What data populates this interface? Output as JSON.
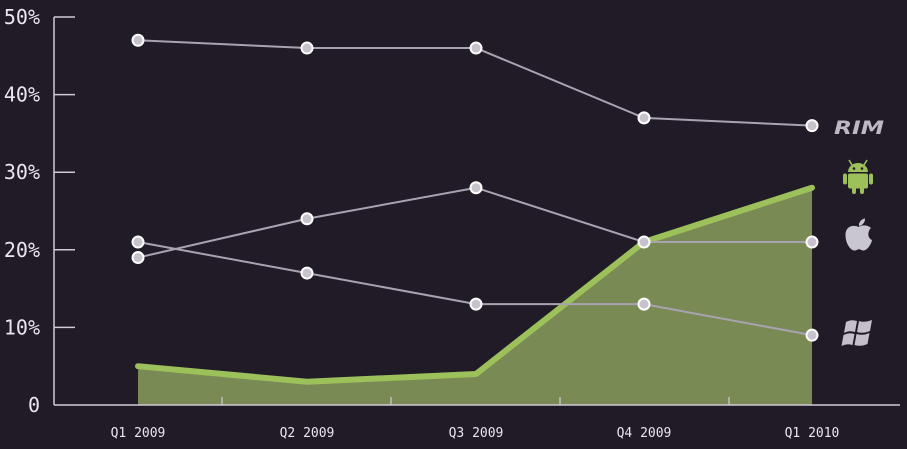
{
  "chart_data": {
    "type": "line",
    "categories": [
      "Q1 2009",
      "Q2 2009",
      "Q3 2009",
      "Q4 2009",
      "Q1 2010"
    ],
    "y_ticks": [
      "0",
      "10%",
      "20%",
      "30%",
      "40%",
      "50%"
    ],
    "ylim": [
      0,
      50
    ],
    "grid": false,
    "legend": "right, as platform logos at line ends",
    "series": [
      {
        "logo": "rim-logo",
        "values": [
          47,
          46,
          46,
          37,
          36
        ],
        "color": "#a9a2b0",
        "style": "line"
      },
      {
        "logo": "android-robot-icon",
        "values": [
          5,
          3,
          4,
          21,
          28
        ],
        "color": "#9cc05a",
        "fill": "#7a8a55",
        "style": "area"
      },
      {
        "logo": "apple-icon",
        "values": [
          19,
          24,
          28,
          21,
          21
        ],
        "color": "#a9a2b0",
        "style": "line"
      },
      {
        "logo": "windows-flag-icon",
        "values": [
          21,
          17,
          13,
          13,
          9
        ],
        "color": "#a9a2b0",
        "style": "line"
      }
    ],
    "legend_labels": {
      "rim": "RIM"
    }
  }
}
